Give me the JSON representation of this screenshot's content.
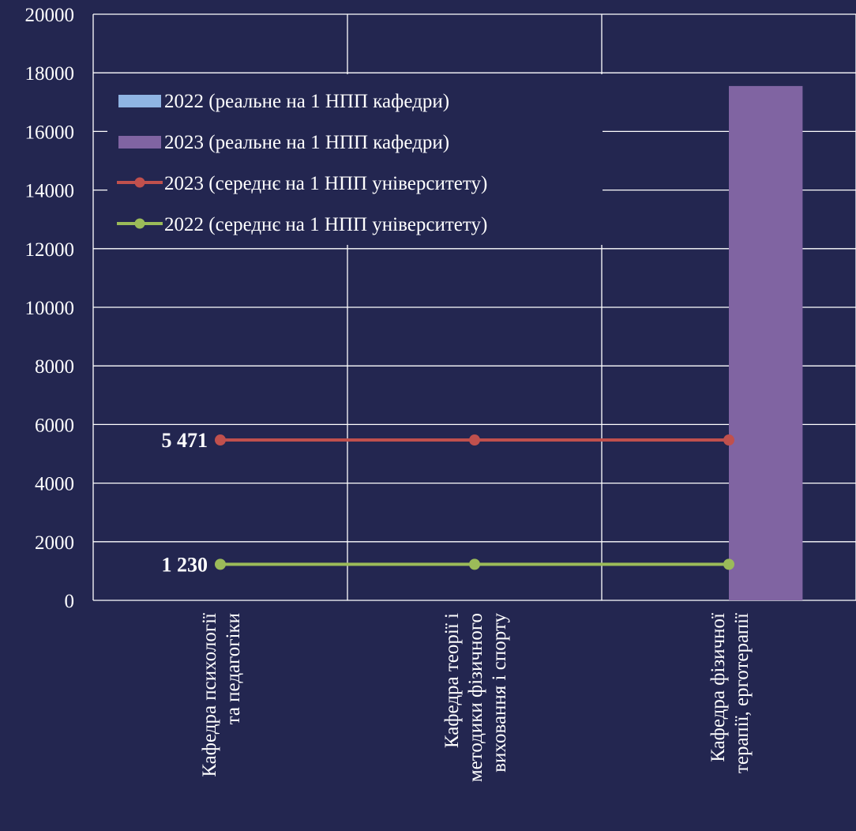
{
  "chart_data": {
    "type": "bar",
    "categories": [
      [
        "Кафедра психології",
        "та педагогіки"
      ],
      [
        "Кафедра теорії і",
        "методики фізичного",
        "виховання і спорту"
      ],
      [
        "Кафедра фізичної",
        "терапії, ерготерапії"
      ]
    ],
    "ylim": [
      0,
      20000
    ],
    "yticks": [
      0,
      2000,
      4000,
      6000,
      8000,
      10000,
      12000,
      14000,
      16000,
      18000,
      20000
    ],
    "grid": true,
    "legend_position": "top-left",
    "series": [
      {
        "name": "2022 (реальне на 1 НПП кафедри)",
        "kind": "bar",
        "color": "#8fb4e3",
        "values": [
          0,
          0,
          0
        ]
      },
      {
        "name": "2023 (реальне на 1 НПП кафедри)",
        "kind": "bar",
        "color": "#8064a2",
        "values": [
          0,
          0,
          17550
        ]
      },
      {
        "name": "2023 (середнє на 1 НПП університету)",
        "kind": "line",
        "color": "#c0504d",
        "values": [
          5471,
          5471,
          5471
        ]
      },
      {
        "name": "2022 (середнє на 1 НПП університету)",
        "kind": "line",
        "color": "#9bbb59",
        "values": [
          1230,
          1230,
          1230
        ]
      }
    ],
    "data_labels": [
      {
        "series": 2,
        "index": 0,
        "text": "5 471"
      },
      {
        "series": 3,
        "index": 0,
        "text": "1 230"
      }
    ]
  }
}
